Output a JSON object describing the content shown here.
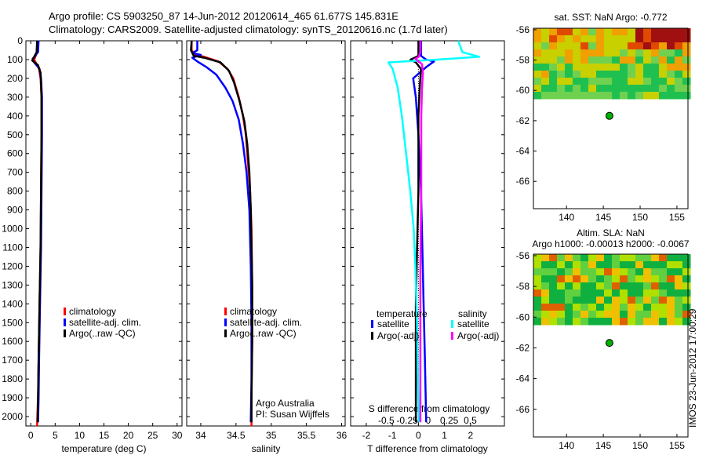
{
  "header": {
    "line1": "Argo profile: CS 5903250_87 14-Jun-2012 20120614_465 61.677S 145.831E",
    "line2": "Climatology: CARS2009. Satellite-adjusted climatology: synTS_20120616.nc (1.7d later)"
  },
  "side_stamp": "IMOS 23-Jun-2012 17:00:29",
  "colors": {
    "climatology": "#ff0000",
    "satellite": "#0000ff",
    "argo": "#000000",
    "sat_salinity": "#00ffff",
    "argo_salinity": "#ff00ff",
    "float": "#00b000"
  },
  "chart_data": [
    {
      "id": "temperature",
      "type": "line",
      "xlabel": "temperature (deg C)",
      "xlim": [
        -1,
        31
      ],
      "xticks": [
        "0",
        "5",
        "10",
        "15",
        "20",
        "25",
        "30"
      ],
      "xtick_values": [
        0,
        5,
        10,
        15,
        20,
        25,
        30
      ],
      "ylim": [
        2050,
        0
      ],
      "yticks": [
        "0",
        "100",
        "200",
        "300",
        "400",
        "500",
        "600",
        "700",
        "800",
        "900",
        "1000",
        "1100",
        "1200",
        "1300",
        "1400",
        "1500",
        "1600",
        "1700",
        "1800",
        "1900",
        "2000"
      ],
      "ytick_values": [
        0,
        100,
        200,
        300,
        400,
        500,
        600,
        700,
        800,
        900,
        1000,
        1100,
        1200,
        1300,
        1400,
        1500,
        1600,
        1700,
        1800,
        1900,
        2000
      ],
      "legend": [
        "climatology",
        "satellite-adj. clim.",
        "Argo(..raw -QC)"
      ],
      "series": [
        {
          "name": "climatology",
          "color_key": "climatology",
          "points": [
            [
              1.4,
              0
            ],
            [
              1.3,
              60
            ],
            [
              0.7,
              100
            ],
            [
              1.7,
              150
            ],
            [
              2.0,
              200
            ],
            [
              2.2,
              300
            ],
            [
              2.2,
              500
            ],
            [
              2.1,
              800
            ],
            [
              2.0,
              1100
            ],
            [
              1.8,
              1400
            ],
            [
              1.6,
              1700
            ],
            [
              1.5,
              1900
            ],
            [
              1.4,
              1960
            ],
            [
              1.3,
              2050
            ]
          ]
        },
        {
          "name": "satellite-adj. clim.",
          "color_key": "satellite",
          "points": [
            [
              1.6,
              0
            ],
            [
              1.5,
              60
            ],
            [
              0.4,
              95
            ],
            [
              0.5,
              108
            ],
            [
              1.8,
              150
            ],
            [
              2.1,
              200
            ],
            [
              2.3,
              300
            ],
            [
              2.3,
              500
            ],
            [
              2.2,
              800
            ],
            [
              2.1,
              1100
            ],
            [
              1.9,
              1400
            ],
            [
              1.7,
              1700
            ],
            [
              1.6,
              1900
            ],
            [
              1.5,
              2030
            ]
          ]
        },
        {
          "name": "Argo(..raw -QC)",
          "color_key": "argo",
          "points": [
            [
              1.3,
              0
            ],
            [
              1.2,
              60
            ],
            [
              0.3,
              105
            ],
            [
              1.5,
              130
            ],
            [
              2.0,
              170
            ],
            [
              2.1,
              220
            ],
            [
              2.2,
              300
            ],
            [
              2.2,
              500
            ],
            [
              2.1,
              800
            ],
            [
              2.0,
              1100
            ],
            [
              1.8,
              1400
            ],
            [
              1.6,
              1700
            ],
            [
              1.5,
              1900
            ],
            [
              1.4,
              2030
            ]
          ]
        }
      ]
    },
    {
      "id": "salinity",
      "type": "line",
      "xlabel": "salinity",
      "xlim": [
        33.8,
        36.05
      ],
      "xticks": [
        "34",
        "34.5",
        "35",
        "35.5",
        "36"
      ],
      "xtick_values": [
        34,
        34.5,
        35,
        35.5,
        36
      ],
      "ylim": [
        2050,
        0
      ],
      "legend": [
        "climatology",
        "satellite-adj. clim.",
        "Argo(..raw -QC)"
      ],
      "credit": [
        "Argo Australia",
        "PI: Susan Wijffels"
      ],
      "series": [
        {
          "name": "climatology",
          "color_key": "climatology",
          "points": [
            [
              33.87,
              0
            ],
            [
              33.87,
              50
            ],
            [
              33.92,
              75
            ],
            [
              34.05,
              85
            ],
            [
              34.25,
              110
            ],
            [
              34.38,
              150
            ],
            [
              34.46,
              200
            ],
            [
              34.54,
              300
            ],
            [
              34.6,
              400
            ],
            [
              34.64,
              500
            ],
            [
              34.67,
              650
            ],
            [
              34.7,
              800
            ],
            [
              34.72,
              1000
            ],
            [
              34.73,
              1300
            ],
            [
              34.73,
              1600
            ],
            [
              34.72,
              1900
            ],
            [
              34.72,
              2050
            ]
          ]
        },
        {
          "name": "satellite-adj. clim.",
          "color_key": "satellite",
          "points": [
            [
              33.95,
              0
            ],
            [
              33.95,
              50
            ],
            [
              33.88,
              65
            ],
            [
              34.0,
              75
            ],
            [
              33.88,
              90
            ],
            [
              33.95,
              110
            ],
            [
              34.08,
              140
            ],
            [
              34.22,
              180
            ],
            [
              34.35,
              250
            ],
            [
              34.45,
              320
            ],
            [
              34.54,
              420
            ],
            [
              34.6,
              550
            ],
            [
              34.65,
              700
            ],
            [
              34.69,
              900
            ],
            [
              34.71,
              1200
            ],
            [
              34.72,
              1500
            ],
            [
              34.72,
              1800
            ],
            [
              34.71,
              2030
            ]
          ]
        },
        {
          "name": "Argo(..raw -QC)",
          "color_key": "argo",
          "points": [
            [
              33.87,
              0
            ],
            [
              33.86,
              50
            ],
            [
              33.9,
              80
            ],
            [
              34.05,
              90
            ],
            [
              34.28,
              115
            ],
            [
              34.4,
              160
            ],
            [
              34.47,
              220
            ],
            [
              34.55,
              320
            ],
            [
              34.62,
              430
            ],
            [
              34.66,
              550
            ],
            [
              34.69,
              700
            ],
            [
              34.71,
              900
            ],
            [
              34.72,
              1100
            ],
            [
              34.73,
              1300
            ],
            [
              34.73,
              1600
            ],
            [
              34.72,
              1900
            ],
            [
              34.72,
              2030
            ]
          ]
        }
      ]
    },
    {
      "id": "difference",
      "type": "line",
      "xlabel": "T difference from climatology",
      "xlim": [
        -2.6,
        3.3
      ],
      "xticks": [
        "-2",
        "-1",
        "0",
        "1",
        "2"
      ],
      "xtick_values": [
        -2,
        -1,
        0,
        1,
        2
      ],
      "top_label": "S difference from climatology",
      "top_ticks": [
        "-0.5",
        "-0.25",
        "0",
        "0.25",
        "0.5"
      ],
      "top_tick_values": [
        -0.5,
        -0.25,
        0,
        0.25,
        0.5
      ],
      "ylim": [
        2050,
        0
      ],
      "legend_groups": [
        {
          "title": "temperature",
          "items": [
            {
              "label": "satellite",
              "color_key": "satellite"
            },
            {
              "label": "Argo(-adj)",
              "color_key": "argo"
            }
          ]
        },
        {
          "title": "salinity",
          "items": [
            {
              "label": "satellite",
              "color_key": "sat_salinity"
            },
            {
              "label": "Argo(-adj)",
              "color_key": "argo_salinity"
            }
          ]
        }
      ],
      "series": [
        {
          "name": "temperature satellite",
          "color_key": "satellite",
          "points": [
            [
              0.1,
              0
            ],
            [
              0.1,
              80
            ],
            [
              0.3,
              100
            ],
            [
              0.6,
              110
            ],
            [
              0.3,
              140
            ],
            [
              -0.2,
              200
            ],
            [
              -0.1,
              300
            ],
            [
              0,
              500
            ],
            [
              0.1,
              800
            ],
            [
              0.15,
              1100
            ],
            [
              0.2,
              1400
            ],
            [
              0.25,
              1700
            ],
            [
              0.3,
              2030
            ]
          ]
        },
        {
          "name": "temperature Argo(-adj)",
          "color_key": "argo",
          "points": [
            [
              0,
              0
            ],
            [
              0,
              80
            ],
            [
              -0.3,
              100
            ],
            [
              -0.1,
              115
            ],
            [
              0.1,
              150
            ],
            [
              0.05,
              250
            ],
            [
              0,
              400
            ],
            [
              0,
              800
            ],
            [
              -0.05,
              1100
            ],
            [
              -0.1,
              1400
            ],
            [
              -0.1,
              1700
            ],
            [
              -0.1,
              2030
            ]
          ]
        },
        {
          "name": "salinity satellite",
          "color_key": "sat_salinity",
          "points": [
            [
              0.45,
              0
            ],
            [
              0.5,
              60
            ],
            [
              0.7,
              85
            ],
            [
              0.2,
              100
            ],
            [
              -0.38,
              115
            ],
            [
              -0.33,
              150
            ],
            [
              -0.27,
              250
            ],
            [
              -0.22,
              400
            ],
            [
              -0.17,
              600
            ],
            [
              -0.12,
              800
            ],
            [
              -0.08,
              1000
            ],
            [
              -0.06,
              1200
            ],
            [
              -0.04,
              1500
            ],
            [
              -0.03,
              1800
            ],
            [
              -0.02,
              2030
            ]
          ]
        },
        {
          "name": "salinity Argo(-adj)",
          "color_key": "argo_salinity",
          "points": [
            [
              0.0,
              0
            ],
            [
              0.0,
              60
            ],
            [
              -0.02,
              85
            ],
            [
              -0.06,
              95
            ],
            [
              0.02,
              125
            ],
            [
              0.03,
              170
            ],
            [
              0.02,
              250
            ],
            [
              0.01,
              400
            ],
            [
              0.01,
              800
            ],
            [
              0,
              1200
            ],
            [
              0,
              1600
            ],
            [
              0,
              2030
            ]
          ]
        }
      ]
    },
    {
      "id": "sst_map",
      "type": "heatmap",
      "title": "sat. SST: NaN Argo: -0.772",
      "xlim": [
        135.5,
        156.5
      ],
      "ylim": [
        -67.8,
        -55.9
      ],
      "xticks": [
        "140",
        "145",
        "150",
        "155"
      ],
      "xtick_values": [
        140,
        145,
        150,
        155
      ],
      "yticks": [
        "-56",
        "-58",
        "-60",
        "-62",
        "-64",
        "-66"
      ],
      "ytick_values": [
        -56,
        -58,
        -60,
        -62,
        -64,
        -66
      ],
      "data_extent_lat": [
        -60.2,
        -55.9
      ],
      "float_position": [
        145.831,
        -61.677
      ]
    },
    {
      "id": "sla_map",
      "type": "heatmap",
      "title": "Altim. SLA: NaN",
      "subtitle": "Argo h1000: -0.00013 h2000: -0.0067",
      "xlim": [
        135.5,
        156.5
      ],
      "ylim": [
        -67.8,
        -55.9
      ],
      "xticks": [
        "140",
        "145",
        "150",
        "155"
      ],
      "xtick_values": [
        140,
        145,
        150,
        155
      ],
      "yticks": [
        "-56",
        "-58",
        "-60",
        "-62",
        "-64",
        "-66"
      ],
      "ytick_values": [
        -56,
        -58,
        -60,
        -62,
        -64,
        -66
      ],
      "data_extent_lat": [
        -60.2,
        -55.9
      ],
      "float_position": [
        145.831,
        -61.677
      ]
    }
  ]
}
